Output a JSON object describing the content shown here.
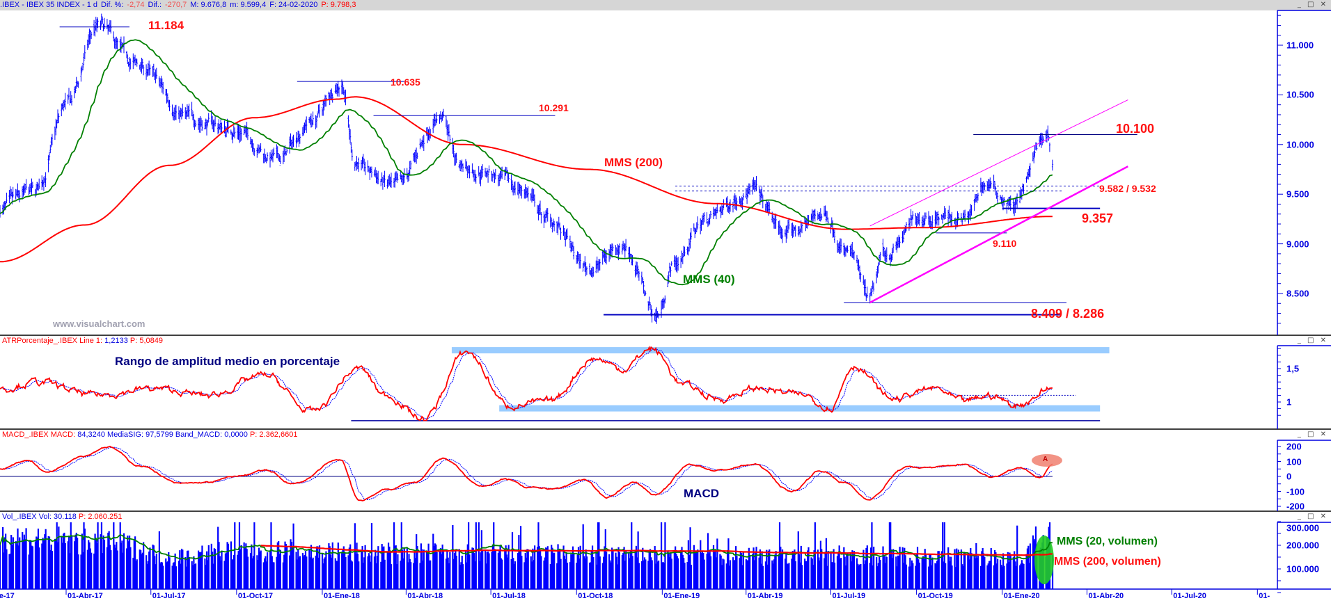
{
  "header": {
    "symbol": ".IBEX - IBEX 35 INDEX -  1 d",
    "dif_pct_label": "Dif. %:",
    "dif_pct": "-2,74",
    "dif_label": "Dif.:",
    "dif": "-270,7",
    "max": "M: 9.676,8",
    "min": "m: 9.599,4",
    "date": "F: 24-02-2020",
    "price": "P: 9.798,3"
  },
  "window_buttons": "_ □ ✕",
  "panels": {
    "atr": {
      "name": "ATRPorcentaje_.IBEX",
      "line_label": "Line 1:",
      "line_value": "1,2133",
      "p": "P: 5,0849"
    },
    "macd": {
      "name": "MACD_.IBEX",
      "macd_label": "MACD:",
      "macd_value": "84,3240",
      "sig_label": "MediaSIG:",
      "sig_value": "97,5799",
      "band_label": "Band_MACD:",
      "band_value": "0,0000",
      "p": "P: 2.362,6601"
    },
    "vol": {
      "name": "Vol_.IBEX",
      "vol_label": "Vol:",
      "vol_value": "30.118",
      "p": "P: 2.060.251"
    }
  },
  "annotations": {
    "h1": "11.184",
    "h2": "10.635",
    "h3": "10.291",
    "mms200": "MMS (200)",
    "r1": "10.100",
    "s1": "9.582 / 9.532",
    "s2": "9.357",
    "s3": "9.110",
    "mms40": "MMS (40)",
    "lows": "8.409 / 8.286",
    "watermark": "www.visualchart.com",
    "atr_title": "Rango de amplitud medio en porcentaje",
    "macd_title": "MACD",
    "vol_ma20": "MMS (20, volumen)",
    "vol_ma200": "MMS (200, volumen)",
    "marker": "A"
  },
  "colors": {
    "bars": "#0000ff",
    "ma200": "#ff0000",
    "ma40": "#008000",
    "channel": "#ff00ff",
    "band": "#99ccff",
    "axis": "#0000e0"
  },
  "chart_data": {
    "type": "ohlc",
    "title": "IBEX 35 INDEX, daily",
    "x_ticks": [
      "ne-17",
      "01-Abr-17",
      "01-Jul-17",
      "01-Oct-17",
      "01-Ene-18",
      "01-Abr-18",
      "01-Jul-18",
      "01-Oct-18",
      "01-Ene-19",
      "01-Abr-19",
      "01-Jul-19",
      "01-Oct-19",
      "01-Ene-20",
      "01-Abr-20",
      "01-Jul-20",
      "01-"
    ],
    "x_tick_dates": [
      "2017-01-01",
      "2017-04-01",
      "2017-07-01",
      "2017-10-01",
      "2018-01-01",
      "2018-04-01",
      "2018-07-01",
      "2018-10-01",
      "2019-01-01",
      "2019-04-01",
      "2019-07-01",
      "2019-10-01",
      "2020-01-01",
      "2020-04-01",
      "2020-07-01",
      "2020-10-01"
    ],
    "price_axis": {
      "ticks": [
        "11.000",
        "10.500",
        "10.000",
        "9.500",
        "9.000",
        "8.500"
      ],
      "tick_values": [
        11000,
        10500,
        10000,
        9500,
        9000,
        8500
      ],
      "range": [
        8170,
        11350
      ]
    },
    "price_anchors": [
      [
        "2017-01-20",
        9350
      ],
      [
        "2017-02-26",
        9500
      ],
      [
        "2017-04-03",
        10400
      ],
      [
        "2017-05-05",
        11184
      ],
      [
        "2017-06-14",
        10800
      ],
      [
        "2017-08-16",
        10250
      ],
      [
        "2017-09-30",
        10150
      ],
      [
        "2017-11-14",
        9850
      ],
      [
        "2017-12-21",
        10250
      ],
      [
        "2018-01-22",
        10635
      ],
      [
        "2018-02-05",
        9850
      ],
      [
        "2018-02-22",
        9700
      ],
      [
        "2018-03-21",
        9550
      ],
      [
        "2018-05-08",
        10291
      ],
      [
        "2018-05-29",
        9800
      ],
      [
        "2018-06-19",
        9750
      ],
      [
        "2018-08-04",
        9550
      ],
      [
        "2018-08-30",
        9250
      ],
      [
        "2018-10-14",
        8750
      ],
      [
        "2018-11-20",
        9000
      ],
      [
        "2018-12-27",
        8286
      ],
      [
        "2019-01-13",
        8800
      ],
      [
        "2019-02-18",
        9250
      ],
      [
        "2019-04-04",
        9550
      ],
      [
        "2019-05-15",
        9100
      ],
      [
        "2019-06-25",
        9300
      ],
      [
        "2019-07-21",
        8900
      ],
      [
        "2019-08-12",
        8409
      ],
      [
        "2019-08-27",
        8900
      ],
      [
        "2019-10-11",
        9300
      ],
      [
        "2019-11-25",
        9250
      ],
      [
        "2019-12-13",
        9600
      ],
      [
        "2020-01-14",
        9400
      ],
      [
        "2020-02-19",
        10100
      ],
      [
        "2020-02-24",
        9800
      ]
    ],
    "ma200_anchors": [
      [
        "2017-01-20",
        8820
      ],
      [
        "2017-04-21",
        9190
      ],
      [
        "2017-07-21",
        9790
      ],
      [
        "2017-10-20",
        10270
      ],
      [
        "2018-01-17",
        10457
      ],
      [
        "2018-02-05",
        10480
      ],
      [
        "2018-06-01",
        10000
      ],
      [
        "2018-10-14",
        9750
      ],
      [
        "2019-02-28",
        9405
      ],
      [
        "2019-07-17",
        9147
      ],
      [
        "2019-10-11",
        9164
      ],
      [
        "2020-02-24",
        9276
      ]
    ],
    "ma40_period": 40,
    "levels": [
      {
        "label": "11.184",
        "value": 11184,
        "from": "2017-03-25",
        "to": "2017-06-08"
      },
      {
        "label": "10.635",
        "value": 10635,
        "from": "2017-12-05",
        "to": "2018-03-30"
      },
      {
        "label": "10.291",
        "value": 10291,
        "from": "2018-02-25",
        "to": "2018-09-08"
      },
      {
        "label": "10.100",
        "value": 10100,
        "from": "2019-12-01",
        "to": "2020-05-25"
      },
      {
        "label": "9.582",
        "value": 9582,
        "from": "2019-01-15",
        "to": "2020-04-15",
        "style": "dashed"
      },
      {
        "label": "9.532",
        "value": 9532,
        "from": "2019-01-15",
        "to": "2020-03-05",
        "style": "dashed"
      },
      {
        "label": "9.357",
        "value": 9357,
        "from": "2020-01-01",
        "to": "2020-04-15"
      },
      {
        "label": "9.110",
        "value": 9110,
        "from": "2019-10-22",
        "to": "2020-01-06"
      },
      {
        "label": "8.409",
        "value": 8409,
        "from": "2019-07-15",
        "to": "2020-03-10"
      },
      {
        "label": "8.286",
        "value": 8286,
        "from": "2018-10-30",
        "to": "2020-03-03"
      }
    ],
    "channel": {
      "upper": [
        [
          "2019-08-12",
          9180
        ],
        [
          "2020-05-15",
          10450
        ]
      ],
      "lower": [
        [
          "2019-08-12",
          8409
        ],
        [
          "2020-05-15",
          9780
        ]
      ]
    },
    "atr": {
      "axis_ticks": [
        "1,5",
        "1"
      ],
      "tick_values": [
        1.5,
        1
      ],
      "anchors": [
        [
          "2017-01-20",
          1.2
        ],
        [
          "2017-03-01",
          1.3
        ],
        [
          "2017-05-01",
          1.1
        ],
        [
          "2017-07-01",
          1.2
        ],
        [
          "2017-09-01",
          1.1
        ],
        [
          "2017-11-01",
          1.4
        ],
        [
          "2017-12-20",
          0.85
        ],
        [
          "2018-02-10",
          1.5
        ],
        [
          "2018-03-10",
          1.1
        ],
        [
          "2018-04-20",
          0.75
        ],
        [
          "2018-06-05",
          1.75
        ],
        [
          "2018-07-20",
          0.95
        ],
        [
          "2018-09-01",
          1.0
        ],
        [
          "2018-10-20",
          1.65
        ],
        [
          "2018-11-20",
          1.5
        ],
        [
          "2018-12-20",
          1.8
        ],
        [
          "2019-01-25",
          1.25
        ],
        [
          "2019-03-01",
          1.05
        ],
        [
          "2019-04-15",
          1.2
        ],
        [
          "2019-06-01",
          1.1
        ],
        [
          "2019-07-01",
          0.92
        ],
        [
          "2019-07-25",
          1.55
        ],
        [
          "2019-09-05",
          1.05
        ],
        [
          "2019-10-20",
          1.2
        ],
        [
          "2019-11-20",
          1.0
        ],
        [
          "2019-12-20",
          1.1
        ],
        [
          "2020-01-15",
          0.95
        ],
        [
          "2020-02-24",
          1.21
        ]
      ],
      "bands": [
        {
          "value": 1.77,
          "from": "2018-05-20",
          "to": "2020-04-25"
        },
        {
          "value": 0.9,
          "from": "2018-07-10",
          "to": "2020-04-15"
        }
      ],
      "support": {
        "value": 0.72,
        "from": "2018-02-01",
        "to": "2020-04-15"
      },
      "dotted": {
        "value": 1.1,
        "from": "2019-11-15",
        "to": "2020-03-20"
      }
    },
    "macd": {
      "axis_ticks": [
        "200",
        "100",
        "0",
        "-100",
        "-200"
      ],
      "tick_values": [
        200,
        100,
        0,
        -100,
        -200
      ],
      "anchors": [
        [
          "2017-01-20",
          50
        ],
        [
          "2017-02-20",
          110
        ],
        [
          "2017-03-10",
          30
        ],
        [
          "2017-04-20",
          140
        ],
        [
          "2017-05-15",
          200
        ],
        [
          "2017-06-20",
          70
        ],
        [
          "2017-08-01",
          -50
        ],
        [
          "2017-09-01",
          -40
        ],
        [
          "2017-10-01",
          0
        ],
        [
          "2017-11-01",
          40
        ],
        [
          "2017-12-01",
          -50
        ],
        [
          "2018-01-20",
          110
        ],
        [
          "2018-02-10",
          -160
        ],
        [
          "2018-03-10",
          -90
        ],
        [
          "2018-04-10",
          -40
        ],
        [
          "2018-05-10",
          120
        ],
        [
          "2018-06-20",
          -60
        ],
        [
          "2018-07-20",
          -20
        ],
        [
          "2018-08-10",
          -80
        ],
        [
          "2018-09-10",
          -80
        ],
        [
          "2018-10-10",
          -20
        ],
        [
          "2018-11-01",
          -140
        ],
        [
          "2018-12-01",
          -40
        ],
        [
          "2018-12-25",
          -120
        ],
        [
          "2019-02-01",
          80
        ],
        [
          "2019-03-01",
          40
        ],
        [
          "2019-04-10",
          80
        ],
        [
          "2019-05-20",
          -100
        ],
        [
          "2019-06-20",
          40
        ],
        [
          "2019-07-15",
          -40
        ],
        [
          "2019-08-10",
          -150
        ],
        [
          "2019-09-20",
          60
        ],
        [
          "2019-10-20",
          60
        ],
        [
          "2019-11-20",
          80
        ],
        [
          "2019-12-20",
          0
        ],
        [
          "2020-01-20",
          60
        ],
        [
          "2020-02-12",
          -10
        ],
        [
          "2020-02-24",
          84
        ]
      ]
    },
    "volume": {
      "axis_ticks": [
        "300.000",
        "200.000",
        "100.000"
      ],
      "tick_values": [
        300000,
        200000,
        100000
      ],
      "anchors": [
        [
          "2017-01-20",
          230000
        ],
        [
          "2017-05-01",
          220000
        ],
        [
          "2017-08-01",
          150000
        ],
        [
          "2017-10-01",
          180000
        ],
        [
          "2018-01-01",
          170000
        ],
        [
          "2018-06-01",
          165000
        ],
        [
          "2019-01-01",
          160000
        ],
        [
          "2019-07-01",
          160000
        ],
        [
          "2020-01-20",
          150000
        ],
        [
          "2020-02-10",
          210000
        ],
        [
          "2020-02-24",
          200000
        ]
      ],
      "ma_periods": [
        20,
        200
      ]
    }
  }
}
